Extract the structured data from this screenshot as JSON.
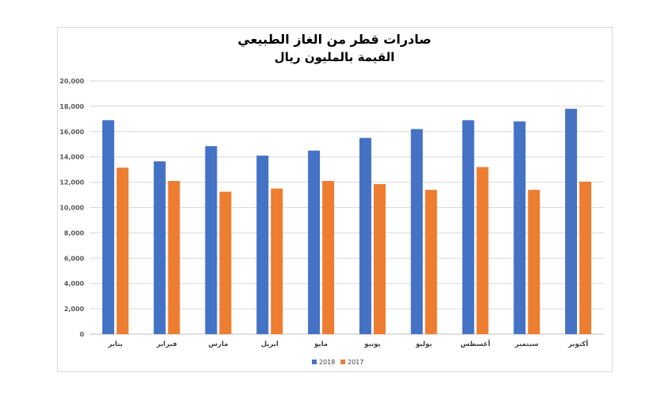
{
  "chart_data": {
    "type": "bar",
    "title": "صادرات قطر من الغاز الطبيعي",
    "subtitle": "القيمة بالمليون ريال",
    "categories": [
      "يناير",
      "فبراير",
      "مارس",
      "ابريل",
      "مايو",
      "يونيو",
      "يوليو",
      "أغسطس",
      "سبتمبر",
      "أكتوبر"
    ],
    "series": [
      {
        "name": "2018",
        "color": "#4472c4",
        "values": [
          16900,
          13650,
          14850,
          14100,
          14500,
          15500,
          16200,
          16900,
          16800,
          17800
        ]
      },
      {
        "name": "2017",
        "color": "#ed7d31",
        "values": [
          13150,
          12100,
          11250,
          11500,
          12100,
          11850,
          11400,
          13200,
          11400,
          12050
        ]
      }
    ],
    "ylim": [
      0,
      20000
    ],
    "yticks": [
      "0",
      "2,000",
      "4,000",
      "6,000",
      "8,000",
      "10,000",
      "12,000",
      "14,000",
      "16,000",
      "18,000",
      "20,000"
    ],
    "ytick_values": [
      0,
      2000,
      4000,
      6000,
      8000,
      10000,
      12000,
      14000,
      16000,
      18000,
      20000
    ],
    "grid": true,
    "legend": "bottom"
  }
}
